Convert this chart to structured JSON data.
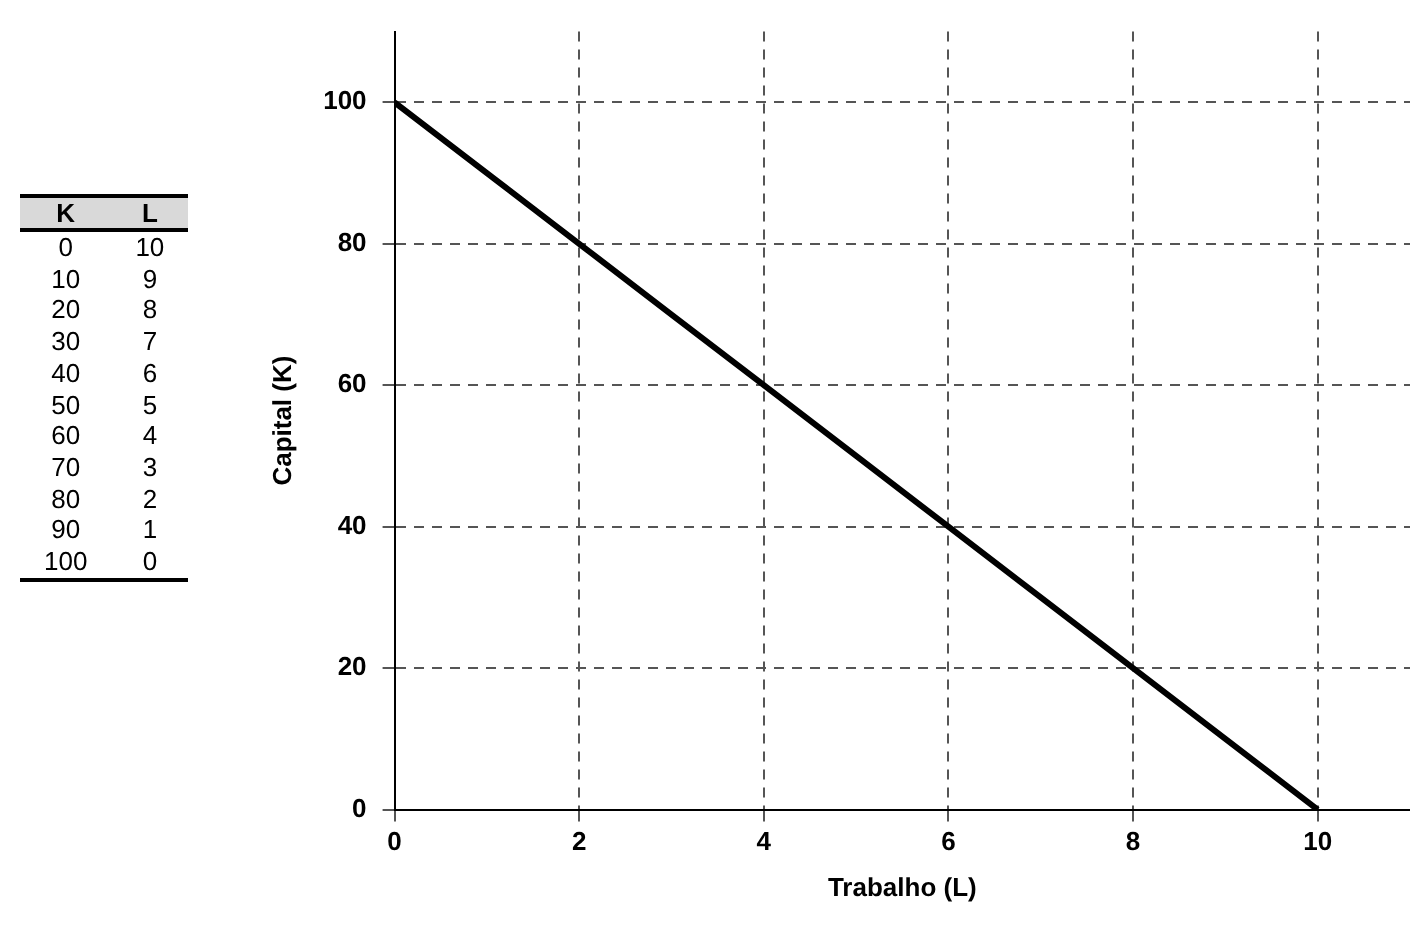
{
  "chart_data": {
    "type": "line",
    "xlabel": "Trabalho (L)",
    "ylabel": "Capital (K)",
    "annotations": [
      "K",
      "L",
      "0",
      "10",
      "10",
      "9",
      "20",
      "8",
      "30",
      "7",
      "40",
      "6",
      "50",
      "5",
      "60",
      "4",
      "70",
      "3",
      "80",
      "2",
      "90",
      "1",
      "100",
      "0"
    ],
    "x": [
      10,
      9,
      8,
      7,
      6,
      5,
      4,
      3,
      2,
      1,
      0
    ],
    "series": [
      {
        "color": "#000000",
        "values": [
          0,
          10,
          20,
          30,
          40,
          50,
          60,
          70,
          80,
          90,
          100
        ]
      }
    ],
    "xlim": [
      0,
      11
    ],
    "xticks": [
      0,
      2,
      4,
      6,
      8,
      10
    ],
    "ylim": [
      0,
      110
    ],
    "yticks": [
      0,
      20,
      40,
      60,
      80,
      100
    ],
    "grid": true,
    "legend": false,
    "marker": "none",
    "line_style": "solid"
  }
}
